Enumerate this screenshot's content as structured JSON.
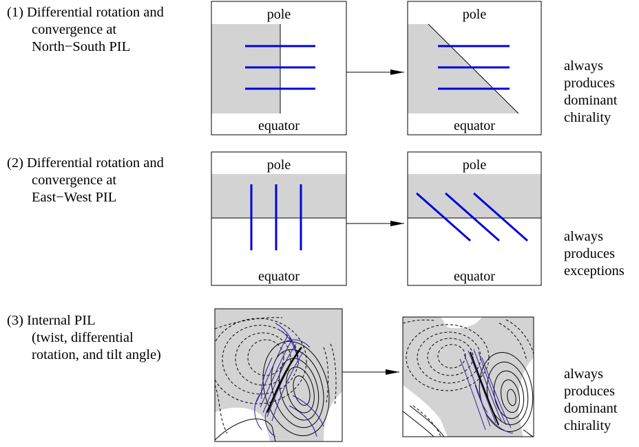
{
  "row1": {
    "title_lines": [
      "(1) Differential rotation and",
      "convergence at",
      "North−South PIL"
    ],
    "left_panel": {
      "top": "pole",
      "bottom": "equator"
    },
    "right_panel": {
      "top": "pole",
      "bottom": "equator"
    },
    "result_lines": [
      "always",
      "produces",
      "dominant",
      "chirality"
    ]
  },
  "row2": {
    "title_lines": [
      "(2) Differential rotation and",
      "convergence at",
      "East−West PIL"
    ],
    "left_panel": {
      "top": "pole",
      "bottom": "equator"
    },
    "right_panel": {
      "top": "pole",
      "bottom": "equator"
    },
    "result_lines": [
      "always",
      "produces",
      "exceptions"
    ]
  },
  "row3": {
    "title_lines": [
      "(3) Internal PIL",
      "(twist, differential",
      "rotation, and tilt angle)"
    ],
    "result_lines": [
      "always",
      "produces",
      "dominant",
      "chirality"
    ]
  },
  "colors": {
    "field_line": "#0000dd",
    "shade": "#d3d3d3",
    "contour": "#000000",
    "fine_field_line": "#2a1a9a"
  }
}
